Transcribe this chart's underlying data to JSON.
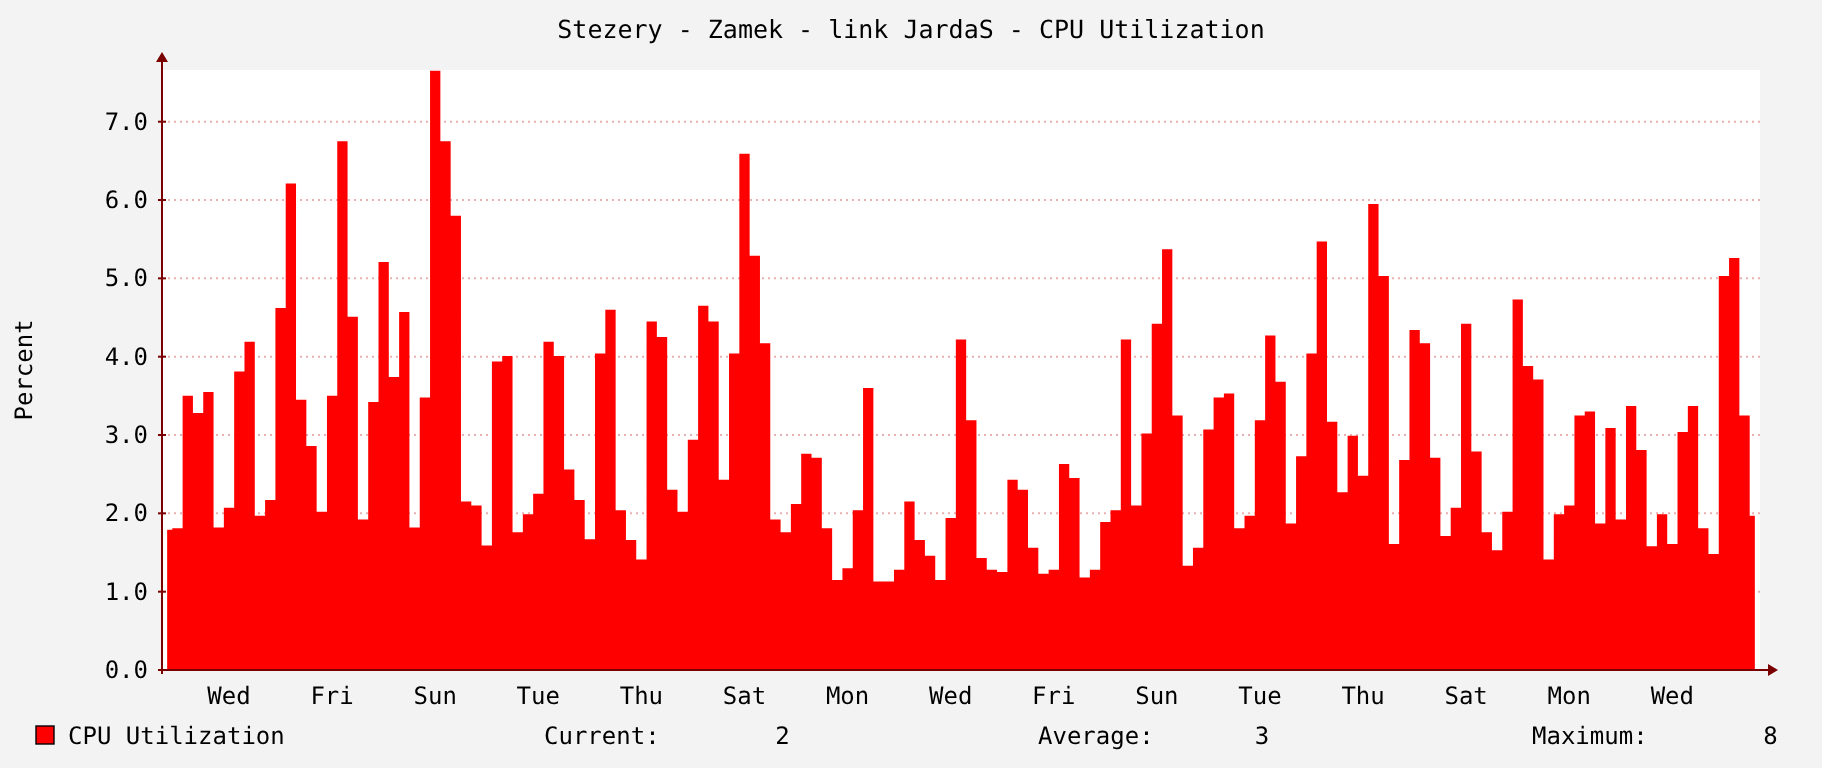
{
  "chart_data": {
    "type": "area",
    "title": "Stezery - Zamek - link JardaS - CPU Utilization",
    "ylabel": "Percent",
    "ylim": [
      0,
      7.66
    ],
    "yticks": [
      {
        "value": 0,
        "label": "0.0"
      },
      {
        "value": 1,
        "label": "1.0"
      },
      {
        "value": 2,
        "label": "2.0"
      },
      {
        "value": 3,
        "label": "3.0"
      },
      {
        "value": 4,
        "label": "4.0"
      },
      {
        "value": 5,
        "label": "5.0"
      },
      {
        "value": 6,
        "label": "6.0"
      },
      {
        "value": 7,
        "label": "7.0"
      }
    ],
    "grid": "y",
    "legend": "bottom",
    "categories": [
      null,
      null,
      null,
      null,
      null,
      null,
      "Wed",
      null,
      null,
      null,
      null,
      null,
      null,
      null,
      null,
      null,
      "Fri",
      null,
      null,
      null,
      null,
      null,
      null,
      null,
      null,
      null,
      "Sun",
      null,
      null,
      null,
      null,
      null,
      null,
      null,
      null,
      null,
      "Tue",
      null,
      null,
      null,
      null,
      null,
      null,
      null,
      null,
      null,
      "Thu",
      null,
      null,
      null,
      null,
      null,
      null,
      null,
      null,
      null,
      "Sat",
      null,
      null,
      null,
      null,
      null,
      null,
      null,
      null,
      null,
      "Mon",
      null,
      null,
      null,
      null,
      null,
      null,
      null,
      null,
      null,
      "Wed",
      null,
      null,
      null,
      null,
      null,
      null,
      null,
      null,
      null,
      "Fri",
      null,
      null,
      null,
      null,
      null,
      null,
      null,
      null,
      null,
      "Sun",
      null,
      null,
      null,
      null,
      null,
      null,
      null,
      null,
      null,
      "Tue",
      null,
      null,
      null,
      null,
      null,
      null,
      null,
      null,
      null,
      "Thu",
      null,
      null,
      null,
      null,
      null,
      null,
      null,
      null,
      null,
      "Sat",
      null,
      null,
      null,
      null,
      null,
      null,
      null,
      null,
      null,
      "Mon",
      null,
      null,
      null,
      null,
      null,
      null,
      null,
      null,
      null,
      "Wed",
      null,
      null,
      null,
      null,
      null,
      null,
      null,
      null
    ],
    "series": [
      {
        "name": "CPU Utilization",
        "color": "#ff0000",
        "values": [
          1.79,
          1.81,
          3.5,
          3.28,
          3.55,
          1.82,
          2.07,
          3.81,
          4.19,
          1.97,
          2.17,
          4.62,
          6.21,
          3.45,
          2.86,
          2.02,
          3.5,
          6.75,
          4.51,
          1.92,
          3.42,
          5.21,
          3.74,
          4.57,
          1.82,
          3.48,
          7.65,
          6.75,
          5.8,
          2.15,
          2.1,
          1.59,
          3.94,
          4.01,
          1.76,
          1.99,
          2.25,
          4.19,
          4.01,
          2.56,
          2.17,
          1.67,
          4.04,
          4.6,
          2.04,
          1.66,
          1.41,
          4.45,
          4.25,
          2.3,
          2.02,
          2.94,
          4.65,
          4.45,
          2.43,
          4.04,
          6.59,
          5.29,
          4.17,
          1.92,
          1.76,
          2.12,
          2.76,
          2.71,
          1.81,
          1.15,
          1.3,
          2.04,
          3.6,
          1.13,
          1.13,
          1.28,
          2.15,
          1.66,
          1.46,
          1.15,
          1.94,
          4.22,
          3.19,
          1.43,
          1.28,
          1.25,
          2.43,
          2.3,
          1.56,
          1.23,
          1.28,
          2.63,
          2.45,
          1.18,
          1.28,
          1.89,
          2.04,
          4.22,
          2.1,
          3.02,
          4.42,
          5.37,
          3.25,
          1.33,
          1.56,
          3.07,
          3.48,
          3.53,
          1.81,
          1.97,
          3.19,
          4.27,
          3.68,
          1.87,
          2.73,
          4.04,
          5.47,
          3.17,
          2.27,
          2.99,
          2.48,
          5.95,
          5.03,
          1.61,
          2.68,
          4.34,
          4.17,
          2.71,
          1.71,
          2.07,
          4.42,
          2.79,
          1.76,
          1.53,
          2.02,
          4.73,
          3.88,
          3.71,
          1.41,
          1.99,
          2.1,
          3.25,
          3.3,
          1.87,
          3.09,
          1.92,
          3.37,
          2.81,
          1.58,
          1.99,
          1.61,
          3.04,
          3.37,
          1.81,
          1.48,
          5.03,
          5.26,
          3.25,
          1.97
        ]
      }
    ],
    "annotations": [
      "Current:        2",
      "Average:       3",
      "Maximum:        8"
    ]
  }
}
